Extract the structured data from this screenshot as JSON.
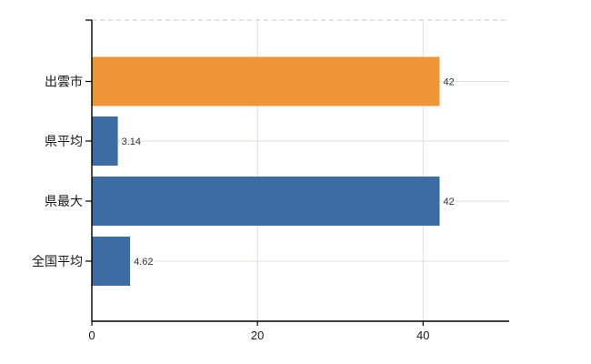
{
  "chart_data": {
    "type": "bar",
    "orientation": "horizontal",
    "categories": [
      "出雲市",
      "県平均",
      "県最大",
      "全国平均"
    ],
    "values": [
      42,
      3.14,
      42,
      4.62
    ],
    "value_labels": [
      "42",
      "3.14",
      "42",
      "4.62"
    ],
    "bar_colors": [
      "#ED9537",
      "#3D6CA5",
      "#3D6CA5",
      "#3D6CA5"
    ],
    "x_ticks": [
      0,
      20,
      40
    ],
    "x_tick_labels": [
      "0",
      "20",
      "40"
    ],
    "xlim": [
      0,
      50.4
    ],
    "grid": true,
    "legend": "none",
    "colors": {
      "highlight_bar": "#ED9537",
      "default_bar": "#3D6CA5",
      "gridline": "#DBE2DB",
      "top_border": "#C9C9C9",
      "axis": "#000000",
      "category_label": "#1A1A1A",
      "tick_label": "#1A1A1A",
      "value_label": "#333333",
      "background": "#FFFFFF"
    }
  }
}
